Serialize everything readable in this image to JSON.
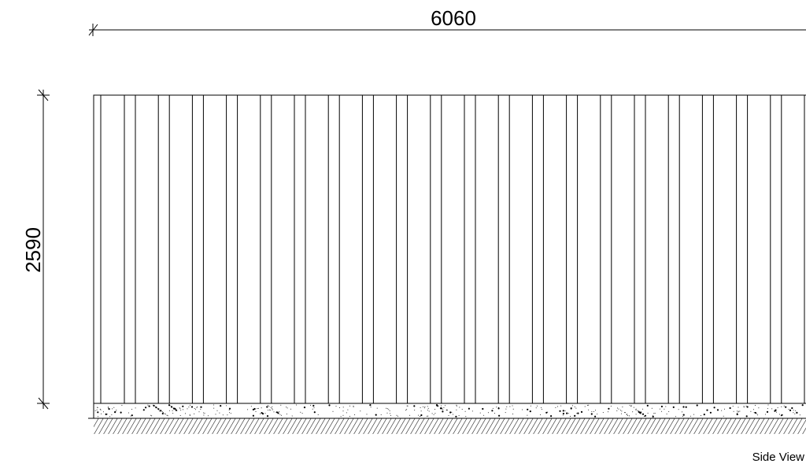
{
  "drawing": {
    "width_dimension": "6060",
    "height_dimension": "2590",
    "view_label": "Side View"
  }
}
